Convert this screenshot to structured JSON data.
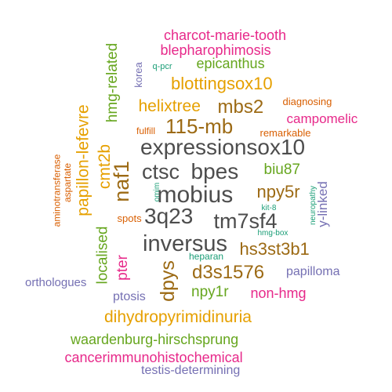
{
  "palette": {
    "gray": "#4d4d4d",
    "orange": "#e6a000",
    "brown": "#9c6a14",
    "green": "#66a61e",
    "magenta": "#e7298a",
    "red": "#d95f02",
    "teal": "#1b9e77",
    "purple": "#7570b3"
  },
  "words": [
    {
      "text": "charcot-marie-tooth",
      "color": "magenta"
    },
    {
      "text": "blepharophimosis",
      "color": "magenta"
    },
    {
      "text": "hmg-related",
      "color": "green"
    },
    {
      "text": "q-pcr",
      "color": "teal"
    },
    {
      "text": "epicanthus",
      "color": "green"
    },
    {
      "text": "korea",
      "color": "purple"
    },
    {
      "text": "blottingsox10",
      "color": "orange"
    },
    {
      "text": "helixtree",
      "color": "orange"
    },
    {
      "text": "mbs2",
      "color": "brown"
    },
    {
      "text": "diagnosing",
      "color": "red"
    },
    {
      "text": "papillon-lefevre",
      "color": "orange"
    },
    {
      "text": "campomelic",
      "color": "magenta"
    },
    {
      "text": "fulfill",
      "color": "red"
    },
    {
      "text": "115-mb",
      "color": "brown"
    },
    {
      "text": "remarkable",
      "color": "red"
    },
    {
      "text": "expressionsox10",
      "color": "gray"
    },
    {
      "text": "cmt2b",
      "color": "orange"
    },
    {
      "text": "aminotransferase",
      "color": "red"
    },
    {
      "text": "aspartate",
      "color": "red"
    },
    {
      "text": "naf1",
      "color": "brown"
    },
    {
      "text": "ctsc",
      "color": "gray"
    },
    {
      "text": "bpes",
      "color": "gray"
    },
    {
      "text": "biu87",
      "color": "green"
    },
    {
      "text": "omim",
      "color": "teal"
    },
    {
      "text": "mobius",
      "color": "gray"
    },
    {
      "text": "npy5r",
      "color": "brown"
    },
    {
      "text": "neuropathy",
      "color": "teal"
    },
    {
      "text": "y-linked",
      "color": "purple"
    },
    {
      "text": "3q23",
      "color": "gray"
    },
    {
      "text": "tm7sf4",
      "color": "gray"
    },
    {
      "text": "kit-8",
      "color": "teal"
    },
    {
      "text": "spots",
      "color": "red"
    },
    {
      "text": "localised",
      "color": "green"
    },
    {
      "text": "hmg-box",
      "color": "teal"
    },
    {
      "text": "inversus",
      "color": "gray"
    },
    {
      "text": "hs3st3b1",
      "color": "brown"
    },
    {
      "text": "dpys",
      "color": "brown"
    },
    {
      "text": "heparan",
      "color": "teal"
    },
    {
      "text": "pter",
      "color": "magenta"
    },
    {
      "text": "d3s1576",
      "color": "brown"
    },
    {
      "text": "papilloma",
      "color": "purple"
    },
    {
      "text": "orthologues",
      "color": "purple"
    },
    {
      "text": "npy1r",
      "color": "green"
    },
    {
      "text": "non-hmg",
      "color": "magenta"
    },
    {
      "text": "ptosis",
      "color": "purple"
    },
    {
      "text": "dihydropyrimidinuria",
      "color": "orange"
    },
    {
      "text": "waardenburg-hirschsprung",
      "color": "green"
    },
    {
      "text": "cancerimmunohistochemical",
      "color": "magenta"
    },
    {
      "text": "testis-determining",
      "color": "purple"
    }
  ]
}
